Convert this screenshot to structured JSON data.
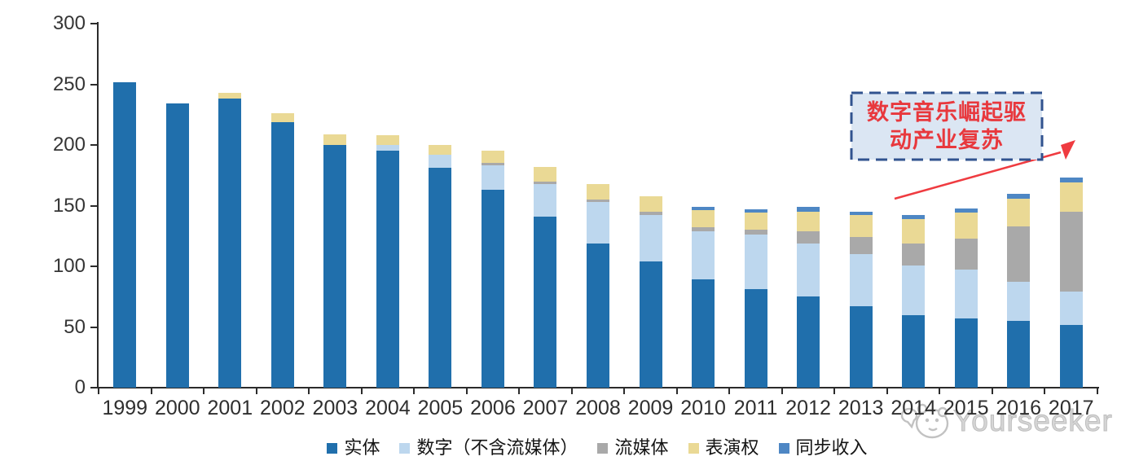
{
  "chart_data": {
    "type": "bar",
    "stacked": true,
    "title": "",
    "xlabel": "",
    "ylabel": "",
    "ylim": [
      0,
      300
    ],
    "yticks": [
      0,
      50,
      100,
      150,
      200,
      250,
      300
    ],
    "grid": false,
    "legend_position": "bottom",
    "categories": [
      "1999",
      "2000",
      "2001",
      "2002",
      "2003",
      "2004",
      "2005",
      "2006",
      "2007",
      "2008",
      "2009",
      "2010",
      "2011",
      "2012",
      "2013",
      "2014",
      "2015",
      "2016",
      "2017"
    ],
    "series": [
      {
        "name": "实体",
        "color": "#206FAC",
        "values": [
          252,
          234,
          238,
          219,
          200,
          195,
          181,
          163,
          141,
          119,
          104,
          89,
          81,
          75,
          67,
          60,
          57,
          55,
          52
        ]
      },
      {
        "name": "数字（不含流媒体）",
        "color": "#BDD7EE",
        "values": [
          0,
          0,
          0,
          0,
          0,
          5,
          11,
          20,
          27,
          34,
          38,
          40,
          45,
          44,
          43,
          41,
          40,
          32,
          27
        ]
      },
      {
        "name": "流媒体",
        "color": "#A9A9A9",
        "values": [
          0,
          0,
          0,
          0,
          0,
          0,
          0,
          2,
          2,
          2,
          3,
          3,
          4,
          10,
          14,
          18,
          26,
          46,
          66
        ]
      },
      {
        "name": "表演权",
        "color": "#EAD995",
        "values": [
          0,
          0,
          5,
          7,
          9,
          8,
          8,
          10,
          12,
          13,
          13,
          14,
          14,
          16,
          18,
          20,
          21,
          23,
          24
        ]
      },
      {
        "name": "同步收入",
        "color": "#4E87C4",
        "values": [
          0,
          0,
          0,
          0,
          0,
          0,
          0,
          0,
          0,
          0,
          0,
          3,
          3,
          4,
          3,
          3,
          4,
          4,
          4
        ]
      }
    ]
  },
  "annotation": {
    "line1": "数字音乐崛起驱",
    "line2": "动产业复苏",
    "text_color": "#E8383D",
    "border_color": "#31538F",
    "bg_color": "#DBE6F3",
    "arrow_color": "#EF3B40"
  },
  "axis_color": "#2b2b2b",
  "watermark": {
    "text": "Yourseeker"
  }
}
